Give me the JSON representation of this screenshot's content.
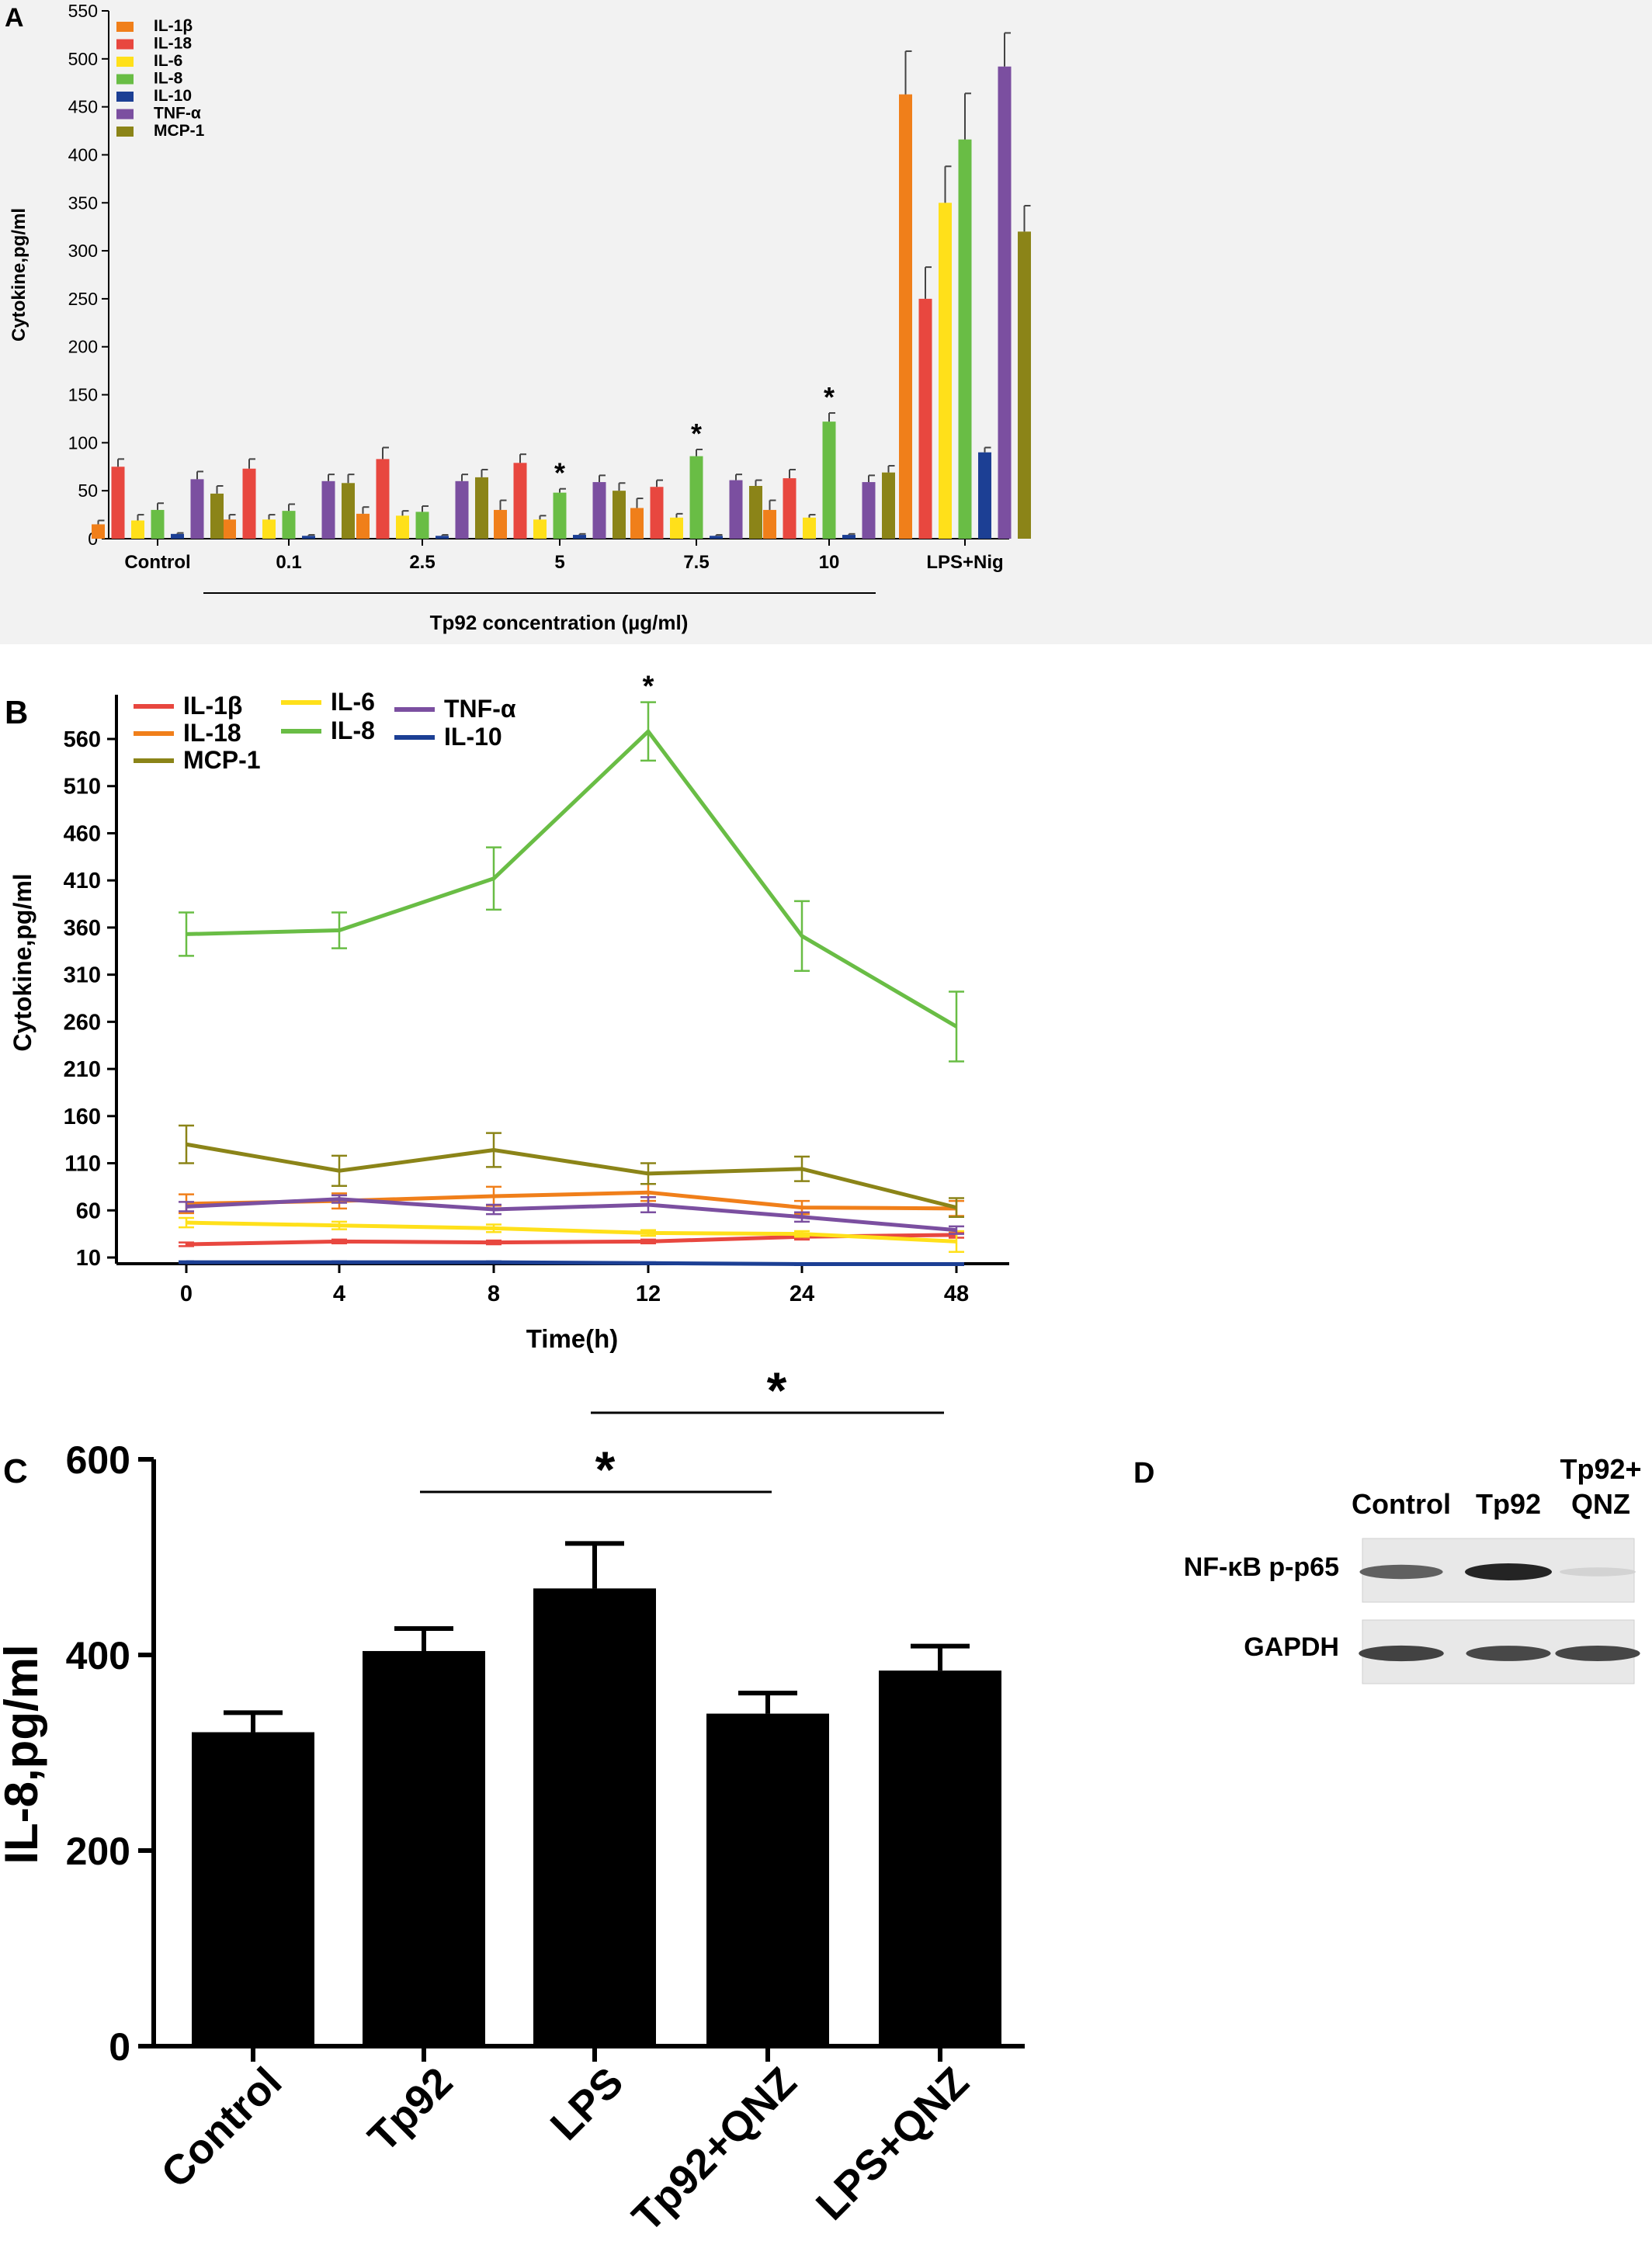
{
  "chart_data": [
    {
      "panel": "A",
      "type": "bar",
      "ylabel": "Cytokine,pg/ml",
      "ylim": [
        0,
        550
      ],
      "yticks": [
        0,
        50,
        100,
        150,
        200,
        250,
        300,
        350,
        400,
        450,
        500,
        550
      ],
      "categories": [
        "Control",
        "0.1",
        "2.5",
        "5",
        "7.5",
        "10",
        "LPS+Nig"
      ],
      "group_label": "Tp92 concentration (µg/ml)",
      "legend_placement": "top-left",
      "series": [
        {
          "name": "IL-1β",
          "color": "#f07f1a",
          "values": [
            15,
            20,
            26,
            30,
            32,
            30,
            463
          ],
          "errors": [
            4,
            5,
            7,
            10,
            10,
            10,
            45
          ]
        },
        {
          "name": "IL-18",
          "color": "#e8473f",
          "values": [
            75,
            73,
            83,
            79,
            54,
            63,
            250
          ],
          "errors": [
            8,
            10,
            12,
            9,
            7,
            9,
            33
          ]
        },
        {
          "name": "IL-6",
          "color": "#ffe01a",
          "values": [
            19,
            20,
            24,
            20,
            22,
            22,
            350
          ],
          "errors": [
            6,
            5,
            5,
            4,
            4,
            3,
            38
          ]
        },
        {
          "name": "IL-8",
          "color": "#69bd45",
          "values": [
            30,
            29,
            28,
            48,
            86,
            122,
            416
          ],
          "errors": [
            7,
            7,
            6,
            4,
            7,
            9,
            48
          ]
        },
        {
          "name": "IL-10",
          "color": "#1c3f94",
          "values": [
            5,
            3,
            3,
            4,
            3,
            4,
            90
          ],
          "errors": [
            1,
            1,
            1,
            1,
            1,
            1,
            5
          ]
        },
        {
          "name": "TNF-α",
          "color": "#7b4fa0",
          "values": [
            62,
            60,
            60,
            59,
            61,
            59,
            492
          ],
          "errors": [
            8,
            7,
            7,
            7,
            6,
            7,
            35
          ]
        },
        {
          "name": "MCP-1",
          "color": "#8b8418",
          "values": [
            47,
            58,
            64,
            50,
            55,
            69,
            320
          ],
          "errors": [
            8,
            9,
            8,
            8,
            6,
            7,
            27
          ]
        }
      ],
      "significance_marks": [
        {
          "category": "5",
          "series": "IL-8",
          "text": "*"
        },
        {
          "category": "7.5",
          "series": "IL-8",
          "text": "*"
        },
        {
          "category": "10",
          "series": "IL-8",
          "text": "*"
        }
      ]
    },
    {
      "panel": "B",
      "type": "line",
      "xlabel": "Time(h)",
      "ylabel": "Cytokine,pg/ml",
      "x": [
        "0",
        "4",
        "8",
        "12",
        "24",
        "48"
      ],
      "ylim": [
        0,
        600
      ],
      "yticks": [
        10,
        60,
        110,
        160,
        210,
        260,
        310,
        360,
        410,
        460,
        510,
        560
      ],
      "legend_placement": "top-left",
      "series": [
        {
          "name": "IL-1β",
          "color": "#e8473f",
          "values": [
            24,
            27,
            26,
            27,
            32,
            34
          ],
          "errors": [
            2,
            2,
            2,
            2,
            3,
            3
          ]
        },
        {
          "name": "IL-18",
          "color": "#f07f1a",
          "values": [
            67,
            70,
            75,
            79,
            63,
            62
          ],
          "errors": [
            10,
            8,
            10,
            9,
            7,
            8
          ]
        },
        {
          "name": "MCP-1",
          "color": "#8b8418",
          "values": [
            130,
            102,
            124,
            99,
            104,
            63
          ],
          "errors": [
            20,
            16,
            18,
            11,
            13,
            10
          ]
        },
        {
          "name": "IL-6",
          "color": "#ffe01a",
          "values": [
            47,
            44,
            41,
            36,
            35,
            27
          ],
          "errors": [
            5,
            4,
            4,
            3,
            3,
            11
          ]
        },
        {
          "name": "IL-8",
          "color": "#69bd45",
          "values": [
            353,
            357,
            412,
            568,
            351,
            255
          ],
          "errors": [
            23,
            19,
            33,
            31,
            37,
            37
          ]
        },
        {
          "name": "TNF-α",
          "color": "#7b4fa0",
          "values": [
            64,
            72,
            61,
            66,
            53,
            39
          ],
          "errors": [
            5,
            4,
            5,
            8,
            5,
            4
          ]
        },
        {
          "name": "IL-10",
          "color": "#1c3f94",
          "values": [
            5,
            5,
            5,
            4,
            3,
            3
          ],
          "errors": [
            1,
            1,
            1,
            1,
            1,
            1
          ]
        }
      ],
      "significance_marks": [
        {
          "x": "12",
          "text": "*"
        }
      ]
    },
    {
      "panel": "C",
      "type": "bar",
      "ylabel": "IL-8,pg/ml",
      "ylim": [
        0,
        600
      ],
      "yticks": [
        0,
        200,
        400,
        600
      ],
      "categories": [
        "Control",
        "Tp92",
        "LPS",
        "Tp92+QNZ",
        "LPS+QNZ"
      ],
      "values": [
        321,
        404,
        468,
        340,
        384
      ],
      "errors": [
        20,
        23,
        46,
        21,
        25
      ],
      "color": "#000000",
      "comparisons": [
        {
          "from": "Tp92",
          "to": "Tp92+QNZ",
          "text": "*"
        },
        {
          "from": "LPS",
          "to": "LPS+QNZ",
          "text": "*"
        }
      ]
    }
  ],
  "panel_labels": {
    "a": "A",
    "b": "B",
    "c": "C",
    "d": "D"
  },
  "blot": {
    "lanes": [
      "Control",
      "Tp92",
      "Tp92+\nQNZ"
    ],
    "lane_labels": [
      "Control",
      "Tp92",
      "Tp92+",
      "QNZ"
    ],
    "rows": [
      {
        "label": "NF-κB p-p65",
        "intensity": [
          0.7,
          1.0,
          0.12
        ]
      },
      {
        "label": "GAPDH",
        "intensity": [
          0.85,
          0.82,
          0.83
        ]
      }
    ]
  }
}
